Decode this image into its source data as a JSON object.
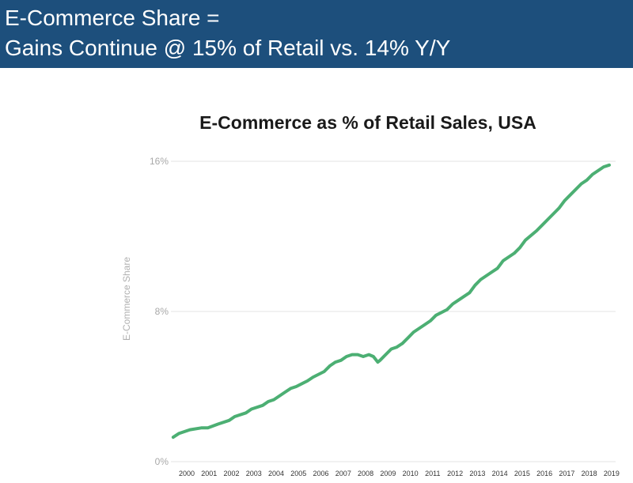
{
  "banner": {
    "line1": "E-Commerce Share =",
    "line2": "Gains Continue @ 15% of Retail vs. 14% Y/Y"
  },
  "colors": {
    "banner": "#1d4f7c",
    "line": "#4caf73",
    "grid": "#e3e3e3"
  },
  "chart_data": {
    "type": "line",
    "title": "E-Commerce as % of Retail Sales, USA",
    "ylabel": "E-Commerce Share",
    "xlabel": "",
    "ylim": [
      0,
      16
    ],
    "xlim": [
      2000,
      2019.25
    ],
    "y_ticks": [
      {
        "value": 0,
        "label": "0%"
      },
      {
        "value": 8,
        "label": "8%"
      },
      {
        "value": 16,
        "label": "16%"
      }
    ],
    "x_ticks": [
      {
        "value": 2000,
        "label": "2000"
      },
      {
        "value": 2001,
        "label": "2001"
      },
      {
        "value": 2002,
        "label": "2002"
      },
      {
        "value": 2003,
        "label": "2003"
      },
      {
        "value": 2004,
        "label": "2004"
      },
      {
        "value": 2005,
        "label": "2005"
      },
      {
        "value": 2006,
        "label": "2006"
      },
      {
        "value": 2007,
        "label": "2007"
      },
      {
        "value": 2008,
        "label": "2008"
      },
      {
        "value": 2009,
        "label": "2009"
      },
      {
        "value": 2010,
        "label": "2010"
      },
      {
        "value": 2011,
        "label": "2011"
      },
      {
        "value": 2012,
        "label": "2012"
      },
      {
        "value": 2013,
        "label": "2013"
      },
      {
        "value": 2014,
        "label": "2014"
      },
      {
        "value": 2015,
        "label": "2015"
      },
      {
        "value": 2016,
        "label": "2016"
      },
      {
        "value": 2017,
        "label": "2017"
      },
      {
        "value": 2018,
        "label": "2018"
      },
      {
        "value": 2019,
        "label": "2019"
      }
    ],
    "grid": true,
    "legend": "none",
    "series": [
      {
        "x": [
          1999.75,
          2000.0,
          2000.5,
          2001.0,
          2001.3,
          2001.75,
          2002.25,
          2002.5,
          2003.0,
          2003.25,
          2003.75,
          2004.0,
          2004.25,
          2004.75,
          2005.0,
          2005.25,
          2005.75,
          2006.0,
          2006.5,
          2006.75,
          2007.0,
          2007.25,
          2007.5,
          2007.75,
          2008.0,
          2008.25,
          2008.5,
          2008.7,
          2008.9,
          2009.0,
          2009.25,
          2009.5,
          2009.75,
          2010.0,
          2010.25,
          2010.5,
          2011.0,
          2011.25,
          2011.5,
          2012.0,
          2012.25,
          2012.5,
          2013.0,
          2013.25,
          2013.5,
          2014.0,
          2014.25,
          2014.5,
          2015.0,
          2015.25,
          2015.5,
          2016.0,
          2016.25,
          2016.5,
          2017.0,
          2017.25,
          2017.5,
          2018.0,
          2018.25,
          2018.5,
          2019.0,
          2019.25
        ],
        "values": [
          1.3,
          1.5,
          1.7,
          1.8,
          1.8,
          2.0,
          2.2,
          2.4,
          2.6,
          2.8,
          3.0,
          3.2,
          3.3,
          3.7,
          3.9,
          4.0,
          4.3,
          4.5,
          4.8,
          5.1,
          5.3,
          5.4,
          5.6,
          5.7,
          5.7,
          5.6,
          5.7,
          5.6,
          5.3,
          5.4,
          5.7,
          6.0,
          6.1,
          6.3,
          6.6,
          6.9,
          7.3,
          7.5,
          7.8,
          8.1,
          8.4,
          8.6,
          9.0,
          9.4,
          9.7,
          10.1,
          10.3,
          10.7,
          11.1,
          11.4,
          11.8,
          12.3,
          12.6,
          12.9,
          13.5,
          13.9,
          14.2,
          14.8,
          15.0,
          15.3,
          15.7,
          15.8
        ]
      }
    ]
  }
}
